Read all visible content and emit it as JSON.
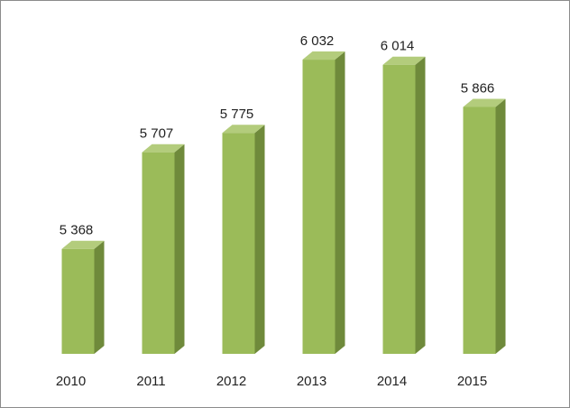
{
  "chart_data": {
    "type": "bar3d",
    "categories": [
      "2010",
      "2011",
      "2012",
      "2013",
      "2014",
      "2015"
    ],
    "values": [
      5368,
      5707,
      5775,
      6032,
      6014,
      5866
    ],
    "value_labels": [
      "5 368",
      "5 707",
      "5 775",
      "6 032",
      "6 014",
      "5 866"
    ],
    "color": "#9bbb59",
    "ylim": [
      5000,
      6200
    ]
  }
}
